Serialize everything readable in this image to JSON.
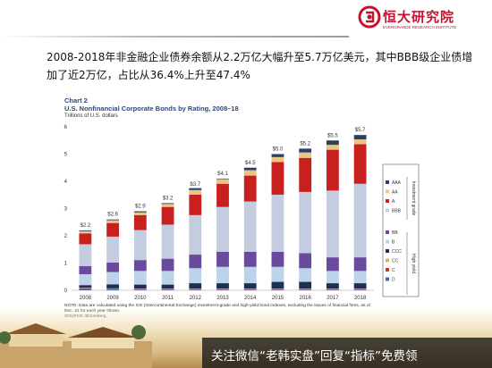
{
  "brand": {
    "name_cn": "恒大研究院",
    "name_en": "EVERGRANDE RESEARCH INSTITUTE",
    "color": "#c8102e"
  },
  "headline": "2008-2018年非金融企业债券余额从2.2万亿大幅升至5.7万亿美元，其中BBB级企业债增加了近2万亿，占比从36.4%上升至47.4%",
  "chart_data": {
    "type": "bar",
    "stacked": true,
    "title": "Chart 2",
    "subtitle": "U.S. Nonfinancial Corporate Bonds by Rating, 2008–18",
    "ylabel": "Trillions of U.S. dollars",
    "ylim": [
      0,
      6
    ],
    "yticks": [
      "0",
      "1",
      "2",
      "3",
      "4",
      "5",
      "6"
    ],
    "categories": [
      "2008",
      "2009",
      "2010",
      "2011",
      "2012",
      "2013",
      "2014",
      "2015",
      "2016",
      "2017",
      "2018"
    ],
    "totals": [
      2.2,
      2.6,
      2.9,
      3.2,
      3.7,
      4.1,
      4.5,
      5.0,
      5.2,
      5.5,
      5.7
    ],
    "total_labels": [
      "$2.2",
      "$2.6",
      "$2.9",
      "$3.2",
      "$3.7",
      "$4.1",
      "$4.5",
      "$5.0",
      "$5.2",
      "$5.5",
      "$5.7"
    ],
    "series": [
      {
        "name": "D",
        "color": "#4a66b0",
        "values": [
          0.05,
          0.03,
          0.02,
          0.02,
          0.02,
          0.02,
          0.02,
          0.02,
          0.02,
          0.02,
          0.02
        ]
      },
      {
        "name": "C",
        "color": "#c23a2e",
        "values": [
          0.02,
          0.02,
          0.02,
          0.02,
          0.02,
          0.02,
          0.02,
          0.02,
          0.02,
          0.02,
          0.02
        ]
      },
      {
        "name": "CC",
        "color": "#d6b15a",
        "values": [
          0.02,
          0.02,
          0.02,
          0.02,
          0.02,
          0.02,
          0.02,
          0.02,
          0.02,
          0.02,
          0.02
        ]
      },
      {
        "name": "CCC",
        "color": "#1e2f52",
        "values": [
          0.1,
          0.15,
          0.15,
          0.15,
          0.2,
          0.2,
          0.2,
          0.25,
          0.25,
          0.2,
          0.2
        ]
      },
      {
        "name": "B",
        "color": "#bcd3ea",
        "values": [
          0.4,
          0.45,
          0.5,
          0.5,
          0.55,
          0.6,
          0.6,
          0.55,
          0.5,
          0.45,
          0.45
        ]
      },
      {
        "name": "BB",
        "color": "#6a4a9c",
        "values": [
          0.3,
          0.35,
          0.4,
          0.45,
          0.5,
          0.55,
          0.55,
          0.55,
          0.55,
          0.5,
          0.5
        ]
      },
      {
        "name": "BBB",
        "color": "#c3cddf",
        "values": [
          0.8,
          0.95,
          1.1,
          1.25,
          1.45,
          1.65,
          1.85,
          2.1,
          2.25,
          2.45,
          2.7
        ]
      },
      {
        "name": "A",
        "color": "#c8201f",
        "values": [
          0.4,
          0.5,
          0.55,
          0.65,
          0.75,
          0.85,
          0.95,
          1.2,
          1.25,
          1.5,
          1.45
        ]
      },
      {
        "name": "AA",
        "color": "#e8c580",
        "values": [
          0.08,
          0.1,
          0.1,
          0.11,
          0.17,
          0.17,
          0.2,
          0.18,
          0.2,
          0.18,
          0.18
        ]
      },
      {
        "name": "AAA",
        "color": "#2b3e66",
        "values": [
          0.03,
          0.03,
          0.04,
          0.03,
          0.07,
          0.02,
          0.09,
          0.11,
          0.14,
          0.16,
          0.16
        ]
      }
    ],
    "legend": {
      "position": "right",
      "groups": [
        {
          "label": "Investment grade",
          "items": [
            "AAA",
            "AA",
            "A",
            "BBB"
          ]
        },
        {
          "label": "High yield",
          "items": [
            "BB",
            "B",
            "CCC",
            "CC",
            "C",
            "D"
          ]
        }
      ]
    },
    "gridlines": false
  },
  "note_lines": [
    "NOTE: Data are calculated using the ICE (Intercontinental Exchange) investment-grade and high-yield bond indexes, excluding the issues of financial firms, as of",
    "Dec. 31 for each year shown.",
    "SOURCE: Bloomberg."
  ],
  "footer": {
    "text": "关注微信“老韩实盘”回复“指标”免费领"
  }
}
